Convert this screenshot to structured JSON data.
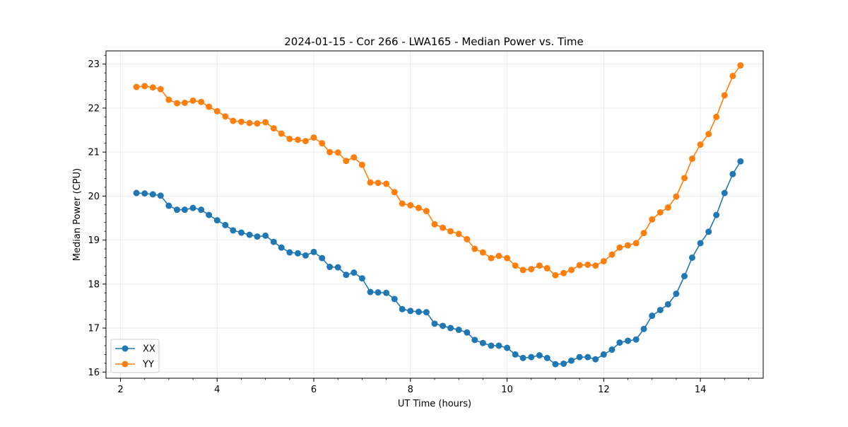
{
  "chart_data": {
    "type": "line",
    "title": "2024-01-15 - Cor 266 - LWA165 - Median Power vs. Time",
    "xlabel": "UT Time (hours)",
    "ylabel": "Median Power (CPU)",
    "xlim": [
      1.7,
      15.3
    ],
    "ylim": [
      15.86,
      23.3
    ],
    "x_ticks": [
      2,
      4,
      6,
      8,
      10,
      12,
      14
    ],
    "y_ticks": [
      16,
      17,
      18,
      19,
      20,
      21,
      22,
      23
    ],
    "grid": true,
    "legend_position": "lower-left",
    "x": [
      2.33,
      2.5,
      2.67,
      2.83,
      3.0,
      3.17,
      3.33,
      3.5,
      3.67,
      3.83,
      4.0,
      4.17,
      4.33,
      4.5,
      4.67,
      4.83,
      5.0,
      5.17,
      5.33,
      5.5,
      5.67,
      5.83,
      6.0,
      6.17,
      6.33,
      6.5,
      6.67,
      6.83,
      7.0,
      7.17,
      7.33,
      7.5,
      7.67,
      7.83,
      8.0,
      8.17,
      8.33,
      8.5,
      8.67,
      8.83,
      9.0,
      9.17,
      9.33,
      9.5,
      9.67,
      9.83,
      10.0,
      10.17,
      10.33,
      10.5,
      10.67,
      10.83,
      11.0,
      11.17,
      11.33,
      11.5,
      11.67,
      11.83,
      12.0,
      12.17,
      12.33,
      12.5,
      12.67,
      12.83,
      13.0,
      13.17,
      13.33,
      13.5,
      13.67,
      13.83,
      14.0,
      14.17,
      14.33,
      14.5,
      14.67,
      14.83
    ],
    "series": [
      {
        "name": "XX",
        "color": "#1f77b4",
        "values": [
          20.07,
          20.06,
          20.04,
          20.01,
          19.78,
          19.69,
          19.69,
          19.73,
          19.69,
          19.57,
          19.45,
          19.34,
          19.22,
          19.17,
          19.12,
          19.08,
          19.1,
          18.96,
          18.83,
          18.72,
          18.7,
          18.65,
          18.73,
          18.59,
          18.39,
          18.38,
          18.21,
          18.26,
          18.13,
          17.82,
          17.81,
          17.8,
          17.66,
          17.43,
          17.39,
          17.37,
          17.36,
          17.1,
          17.05,
          17.0,
          16.96,
          16.9,
          16.73,
          16.66,
          16.6,
          16.6,
          16.55,
          16.4,
          16.32,
          16.34,
          16.38,
          16.32,
          16.18,
          16.19,
          16.26,
          16.34,
          16.34,
          16.29,
          16.4,
          16.51,
          16.67,
          16.71,
          16.74,
          16.98,
          17.28,
          17.41,
          17.54,
          17.78,
          18.18,
          18.6,
          18.93,
          19.19,
          19.57,
          20.07,
          20.5,
          20.79
        ]
      },
      {
        "name": "YY",
        "color": "#ff7f0e",
        "values": [
          22.48,
          22.5,
          22.47,
          22.43,
          22.19,
          22.11,
          22.12,
          22.17,
          22.14,
          22.03,
          21.93,
          21.81,
          21.71,
          21.69,
          21.66,
          21.65,
          21.68,
          21.54,
          21.42,
          21.3,
          21.28,
          21.25,
          21.33,
          21.2,
          21.0,
          20.99,
          20.8,
          20.88,
          20.71,
          20.31,
          20.3,
          20.28,
          20.09,
          19.83,
          19.79,
          19.73,
          19.66,
          19.36,
          19.28,
          19.2,
          19.14,
          19.02,
          18.8,
          18.72,
          18.59,
          18.64,
          18.59,
          18.42,
          18.32,
          18.34,
          18.42,
          18.36,
          18.2,
          18.25,
          18.32,
          18.43,
          18.44,
          18.42,
          18.52,
          18.67,
          18.83,
          18.88,
          18.93,
          19.16,
          19.47,
          19.63,
          19.74,
          19.99,
          20.41,
          20.85,
          21.17,
          21.41,
          21.8,
          22.29,
          22.73,
          22.97
        ]
      }
    ]
  }
}
